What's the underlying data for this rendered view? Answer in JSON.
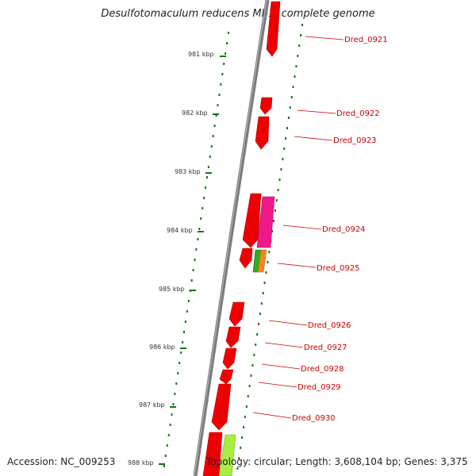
{
  "title": "Desulfotomaculum reducens MI-1, complete genome",
  "footer": {
    "accession": "Accession: NC_009253",
    "topology": "Topology: circular; Length: 3,608,104 bp; Genes: 3,375"
  },
  "ticks": [
    {
      "label": "981 kbp"
    },
    {
      "label": "982 kbp"
    },
    {
      "label": "983 kbp"
    },
    {
      "label": "984 kbp"
    },
    {
      "label": "985 kbp"
    },
    {
      "label": "986 kbp"
    },
    {
      "label": "987 kbp"
    },
    {
      "label": "988 kbp"
    }
  ],
  "gene_labels": [
    {
      "name": "Dred_0921"
    },
    {
      "name": "Dred_0922"
    },
    {
      "name": "Dred_0923"
    },
    {
      "name": "Dred_0924"
    },
    {
      "name": "Dred_0925"
    },
    {
      "name": "Dred_0926"
    },
    {
      "name": "Dred_0927"
    },
    {
      "name": "Dred_0928"
    },
    {
      "name": "Dred_0929"
    },
    {
      "name": "Dred_0930"
    }
  ],
  "colors": {
    "backbone": "#7a7a7a",
    "gene": "#ee0000",
    "gene_magenta": "#ee1a8c",
    "gene_green": "#33aa22",
    "gene_orange": "#f08a1c",
    "gene_lime": "#a8ee44",
    "dots": "#117711",
    "label": "#cc0000"
  }
}
